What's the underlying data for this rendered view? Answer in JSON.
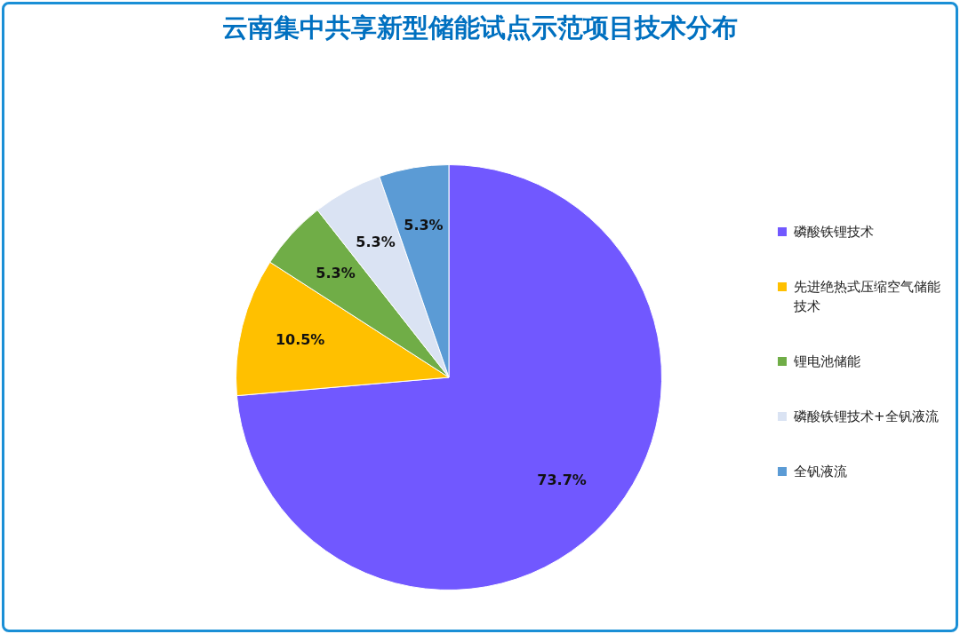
{
  "chart_data": {
    "type": "pie",
    "title": "云南集中共享新型储能试点示范项目技术分布",
    "categories": [
      "磷酸铁锂技术",
      "先进绝热式压缩空气储能技术",
      "锂电池储能",
      "磷酸铁锂技术+全钒液流",
      "全钒液流"
    ],
    "values": [
      73.7,
      10.5,
      5.3,
      5.3,
      5.3
    ],
    "colors": [
      "#7158ff",
      "#ffc000",
      "#70ad47",
      "#dae3f3",
      "#5b9bd5"
    ],
    "value_labels": [
      "73.7%",
      "10.5%",
      "5.3%",
      "5.3%",
      "5.3%"
    ],
    "legend": "right"
  }
}
